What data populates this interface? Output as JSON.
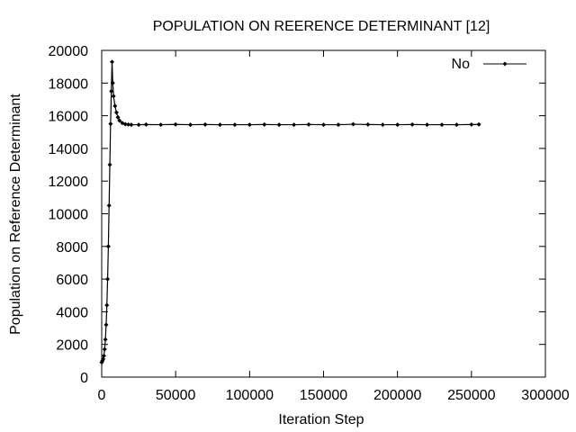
{
  "chart_data": {
    "type": "line",
    "title": "POPULATION ON REERENCE DETERMINANT [12]",
    "xlabel": "Iteration Step",
    "ylabel": "Population on Reference Determinant",
    "xlim": [
      0,
      300000
    ],
    "ylim": [
      0,
      20000
    ],
    "x_ticks": [
      0,
      50000,
      100000,
      150000,
      200000,
      250000,
      300000
    ],
    "y_ticks": [
      0,
      2000,
      4000,
      6000,
      8000,
      10000,
      12000,
      14000,
      16000,
      18000,
      20000
    ],
    "legend_position": "top-right",
    "series": [
      {
        "name": "No",
        "color": "#000000",
        "marker": "diamond",
        "x": [
          0,
          500,
          1000,
          1500,
          2000,
          2500,
          3000,
          3500,
          4000,
          4500,
          5000,
          5500,
          6000,
          6500,
          7000,
          7500,
          8000,
          9000,
          10000,
          11000,
          12000,
          14000,
          16000,
          18000,
          20000,
          25000,
          30000,
          40000,
          50000,
          60000,
          70000,
          80000,
          90000,
          100000,
          110000,
          120000,
          130000,
          140000,
          150000,
          160000,
          170000,
          180000,
          190000,
          200000,
          210000,
          220000,
          230000,
          240000,
          250000,
          255000
        ],
        "values": [
          900,
          1000,
          1100,
          1300,
          1700,
          2300,
          3200,
          4400,
          6000,
          8000,
          10500,
          13000,
          15500,
          17500,
          19300,
          18000,
          17200,
          16600,
          16200,
          15900,
          15700,
          15550,
          15480,
          15460,
          15450,
          15450,
          15460,
          15450,
          15470,
          15450,
          15460,
          15450,
          15450,
          15450,
          15460,
          15450,
          15450,
          15460,
          15450,
          15450,
          15480,
          15460,
          15450,
          15450,
          15460,
          15450,
          15450,
          15450,
          15460,
          15470
        ]
      }
    ]
  }
}
